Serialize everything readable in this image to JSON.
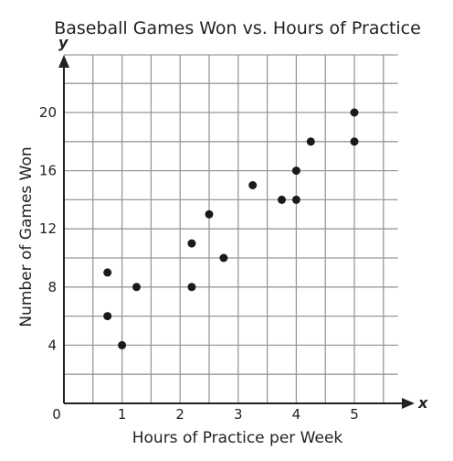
{
  "chart_data": {
    "type": "scatter",
    "title": "Baseball Games Won vs. Hours of Practice",
    "xlabel": "Hours of Practice per Week",
    "ylabel": "Number of Games Won",
    "x_axis_letter": "x",
    "y_axis_letter": "y",
    "xlim": [
      0,
      5.75
    ],
    "ylim": [
      0,
      22
    ],
    "grid": true,
    "x_ticks": [
      {
        "value": 0,
        "label": "0"
      },
      {
        "value": 1,
        "label": "1"
      },
      {
        "value": 2,
        "label": "2"
      },
      {
        "value": 3,
        "label": "3"
      },
      {
        "value": 4,
        "label": "4"
      },
      {
        "value": 5,
        "label": "5"
      }
    ],
    "y_ticks": [
      {
        "value": 4,
        "label": "4"
      },
      {
        "value": 8,
        "label": "8"
      },
      {
        "value": 12,
        "label": "12"
      },
      {
        "value": 16,
        "label": "16"
      },
      {
        "value": 20,
        "label": "20"
      }
    ],
    "points": [
      {
        "x": 0.75,
        "y": 9
      },
      {
        "x": 0.75,
        "y": 6
      },
      {
        "x": 1,
        "y": 4
      },
      {
        "x": 1.25,
        "y": 8
      },
      {
        "x": 2.2,
        "y": 11
      },
      {
        "x": 2.2,
        "y": 8
      },
      {
        "x": 2.5,
        "y": 13
      },
      {
        "x": 2.75,
        "y": 10
      },
      {
        "x": 3.25,
        "y": 15
      },
      {
        "x": 3.75,
        "y": 14
      },
      {
        "x": 4,
        "y": 16
      },
      {
        "x": 4,
        "y": 14
      },
      {
        "x": 4.25,
        "y": 18
      },
      {
        "x": 5,
        "y": 20
      },
      {
        "x": 5,
        "y": 18
      }
    ]
  }
}
